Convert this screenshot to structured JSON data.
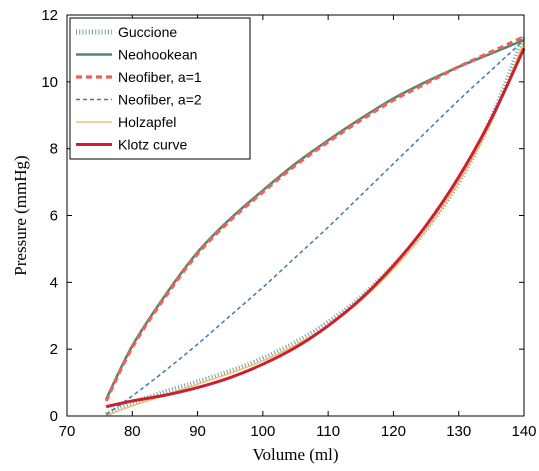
{
  "chart_data": {
    "type": "line",
    "xlabel": "Volume (ml)",
    "ylabel": "Pressure (mmHg)",
    "xlim": [
      70,
      140
    ],
    "ylim": [
      0,
      12
    ],
    "xticks": [
      70,
      80,
      90,
      100,
      110,
      120,
      130,
      140
    ],
    "yticks": [
      0,
      2,
      4,
      6,
      8,
      10,
      12
    ],
    "grid": false,
    "legend_position": "top-left",
    "series": [
      {
        "name": "Guccione",
        "color": "#6fa3a0",
        "style": "dotted-hatch",
        "x": [
          76,
          80,
          85,
          90,
          95,
          100,
          105,
          110,
          115,
          120,
          125,
          130,
          135,
          140
        ],
        "y": [
          0.05,
          0.38,
          0.72,
          1.02,
          1.34,
          1.72,
          2.2,
          2.8,
          3.55,
          4.5,
          5.6,
          7.0,
          8.9,
          11.4
        ]
      },
      {
        "name": "Neohookean",
        "color": "#4f8a6c",
        "style": "solid",
        "x": [
          76,
          80,
          85,
          90,
          95,
          100,
          105,
          110,
          115,
          120,
          125,
          130,
          135,
          140
        ],
        "y": [
          0.5,
          2.1,
          3.6,
          4.9,
          5.9,
          6.75,
          7.55,
          8.25,
          8.9,
          9.5,
          10.0,
          10.45,
          10.85,
          11.25
        ]
      },
      {
        "name": "Neofiber, a=1",
        "color": "#f0605a",
        "style": "dashed",
        "x": [
          76,
          80,
          85,
          90,
          95,
          100,
          105,
          110,
          115,
          120,
          125,
          130,
          135,
          140
        ],
        "y": [
          0.45,
          2.05,
          3.55,
          4.85,
          5.85,
          6.7,
          7.5,
          8.2,
          8.85,
          9.45,
          9.95,
          10.45,
          10.9,
          11.35
        ]
      },
      {
        "name": "Neofiber, a=2",
        "color": "#3a7cad",
        "style": "short-dashed",
        "x": [
          76,
          80,
          85,
          90,
          95,
          100,
          105,
          110,
          115,
          120,
          125,
          130,
          135,
          140
        ],
        "y": [
          0.05,
          0.6,
          1.35,
          2.15,
          3.0,
          3.85,
          4.75,
          5.65,
          6.6,
          7.55,
          8.5,
          9.45,
          10.35,
          11.25
        ]
      },
      {
        "name": "Holzapfel",
        "color": "#f0c070",
        "style": "solid-thin",
        "x": [
          76,
          80,
          85,
          90,
          95,
          100,
          105,
          110,
          115,
          120,
          125,
          130,
          135,
          140
        ],
        "y": [
          0.02,
          0.3,
          0.62,
          0.95,
          1.28,
          1.65,
          2.12,
          2.7,
          3.45,
          4.4,
          5.55,
          7.0,
          8.8,
          11.2
        ]
      },
      {
        "name": "Klotz curve",
        "color": "#cc1f2f",
        "style": "solid-thick",
        "x": [
          76,
          80,
          85,
          90,
          95,
          100,
          105,
          110,
          115,
          120,
          125,
          130,
          135,
          140
        ],
        "y": [
          0.28,
          0.45,
          0.62,
          0.85,
          1.15,
          1.55,
          2.05,
          2.7,
          3.5,
          4.5,
          5.7,
          7.15,
          8.9,
          11.0
        ]
      }
    ]
  }
}
